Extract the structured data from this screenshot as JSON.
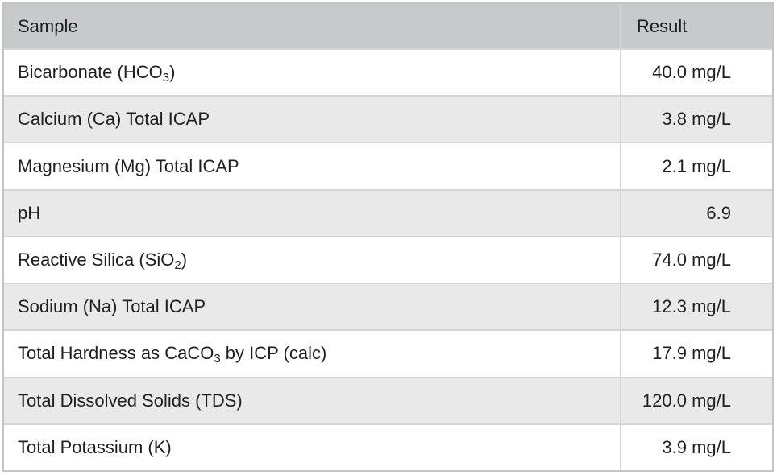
{
  "table": {
    "headers": {
      "sample": "Sample",
      "result": "Result"
    },
    "rows": [
      {
        "sample": "Bicarbonate (HCO",
        "sub": "3",
        "suffix": ")",
        "result": "40.0 mg/L"
      },
      {
        "sample": "Calcium (Ca) Total ICAP",
        "sub": "",
        "suffix": "",
        "result": "3.8 mg/L"
      },
      {
        "sample": "Magnesium (Mg) Total ICAP",
        "sub": "",
        "suffix": "",
        "result": "2.1 mg/L"
      },
      {
        "sample": "pH",
        "sub": "",
        "suffix": "",
        "result": "6.9"
      },
      {
        "sample": "Reactive Silica (SiO",
        "sub": "2",
        "suffix": ")",
        "result": "74.0 mg/L"
      },
      {
        "sample": "Sodium (Na) Total ICAP",
        "sub": "",
        "suffix": "",
        "result": "12.3 mg/L"
      },
      {
        "sample": "Total Hardness as CaCO",
        "sub": "3",
        "suffix": " by ICP (calc)",
        "result": "17.9 mg/L"
      },
      {
        "sample": "Total Dissolved Solids (TDS)",
        "sub": "",
        "suffix": "",
        "result": "120.0 mg/L"
      },
      {
        "sample": "Total Potassium (K)",
        "sub": "",
        "suffix": "",
        "result": "3.9 mg/L"
      }
    ]
  }
}
